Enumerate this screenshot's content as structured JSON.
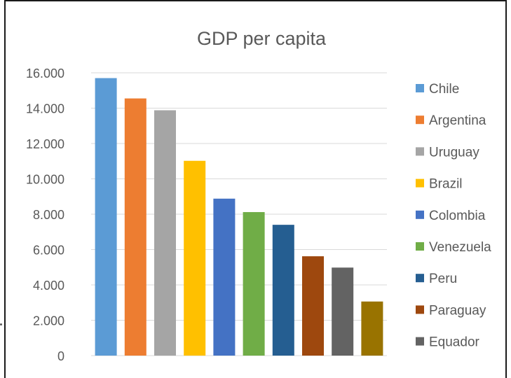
{
  "chart_data": {
    "type": "bar",
    "title": "GDP per capita",
    "categories": [
      "Chile",
      "Argentina",
      "Uruguay",
      "Brazil",
      "Colombia",
      "Venezuela",
      "Peru",
      "Paraguay",
      "Equador",
      ""
    ],
    "values": [
      15700,
      14550,
      13880,
      11020,
      8880,
      8120,
      7400,
      5620,
      4980,
      3060
    ],
    "colors": [
      "#5B9BD5",
      "#ED7D31",
      "#A5A5A5",
      "#FFC000",
      "#4472C4",
      "#70AD47",
      "#255E91",
      "#9E480E",
      "#636363",
      "#997300"
    ],
    "legend": [
      "Chile",
      "Argentina",
      "Uruguay",
      "Brazil",
      "Colombia",
      "Venezuela",
      "Peru",
      "Paraguay",
      "Equador"
    ],
    "legend_position": "right",
    "yticks": [
      "0",
      "2.000",
      "4.000",
      "6.000",
      "8.000",
      "10.000",
      "12.000",
      "14.000",
      "16.000"
    ],
    "ylim": [
      0,
      16000
    ],
    "grid": true
  }
}
